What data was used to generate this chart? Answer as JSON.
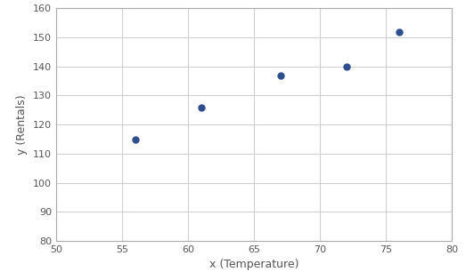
{
  "x": [
    56,
    61,
    67,
    72,
    76
  ],
  "y": [
    115,
    126,
    137,
    140,
    152
  ],
  "xlabel": "x (Temperature)",
  "ylabel": "y (Rentals)",
  "xlim": [
    50,
    80
  ],
  "ylim": [
    80,
    160
  ],
  "xticks": [
    50,
    55,
    60,
    65,
    70,
    75,
    80
  ],
  "yticks": [
    80,
    90,
    100,
    110,
    120,
    130,
    140,
    150,
    160
  ],
  "point_color": "#2E4E8E",
  "point_size": 25,
  "grid_color": "#D0D0D0",
  "background_color": "#FFFFFF",
  "spine_color": "#AAAAAA",
  "tick_label_color": "#555555",
  "label_fontsize": 9,
  "tick_fontsize": 8
}
